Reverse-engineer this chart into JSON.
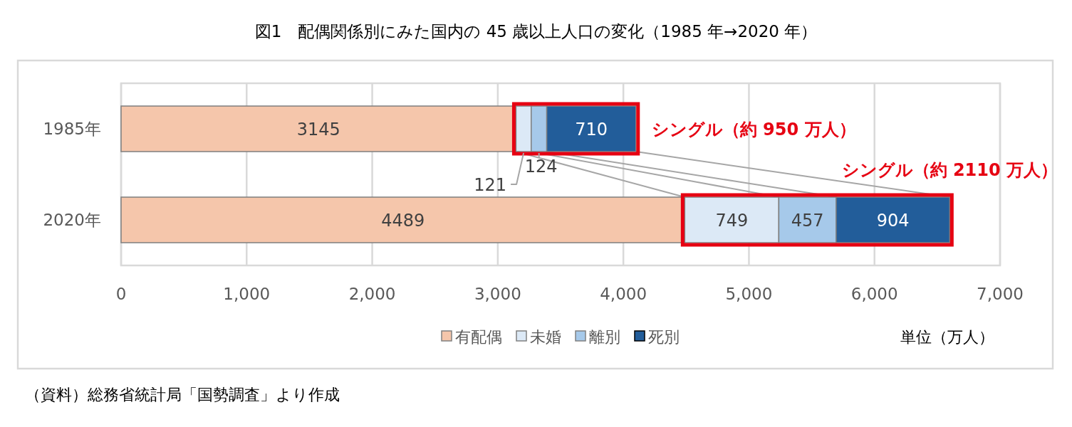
{
  "chart_data": {
    "type": "bar",
    "orientation": "horizontal",
    "stacked": true,
    "title": "図1　配偶関係別にみた国内の 45 歳以上人口の変化（1985 年→2020 年）",
    "categories": [
      "1985年",
      "2020年"
    ],
    "series": [
      {
        "name": "有配偶",
        "color": "#f5c6ab",
        "values": [
          3145,
          4489
        ]
      },
      {
        "name": "未婚",
        "color": "#dce9f6",
        "values": [
          121,
          749
        ]
      },
      {
        "name": "離別",
        "color": "#a6c9ea",
        "values": [
          124,
          457
        ]
      },
      {
        "name": "死別",
        "color": "#225d9a",
        "values": [
          710,
          904
        ]
      }
    ],
    "xlim": [
      0,
      7000
    ],
    "xticks": [
      0,
      {
        "value": 1000,
        "label": "1,000"
      },
      {
        "value": 2000,
        "label": "2,000"
      },
      {
        "value": 3000,
        "label": "3,000"
      },
      {
        "value": 4000,
        "label": "4,000"
      },
      {
        "value": 5000,
        "label": "5,000"
      },
      {
        "value": 6000,
        "label": "6,000"
      },
      {
        "value": 7000,
        "label": "7,000"
      }
    ],
    "grid": "x",
    "legend": "bottom",
    "data_labels": true,
    "annotations": [
      {
        "text": "シングル（約 950 万人）",
        "x": 4100,
        "y": "1985年"
      },
      {
        "text": "シングル（約 2110 万人）",
        "x": 6599,
        "y": "2020年"
      },
      "単位（万人）",
      "（資料）総務省統計局「国勢調査」より作成"
    ]
  }
}
